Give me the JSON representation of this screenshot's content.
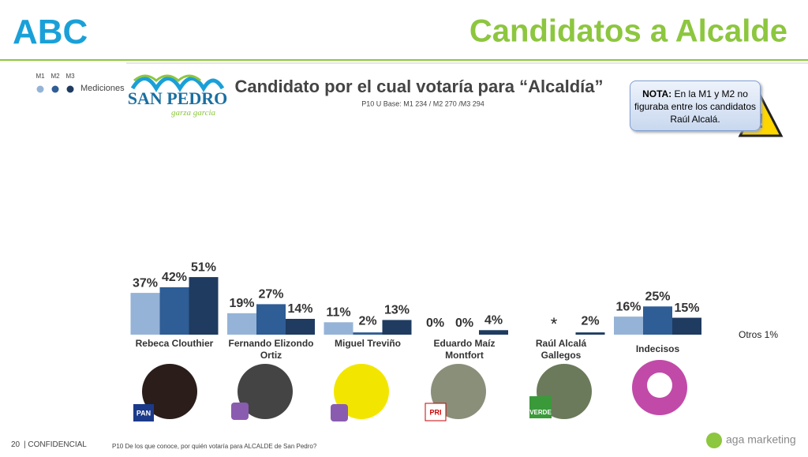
{
  "header": {
    "logo": "ABC",
    "title": "Candidatos a Alcalde",
    "brand": "SAN PEDRO",
    "brand_tagline": "garza garcia"
  },
  "note": {
    "label": "NOTA:",
    "text": "En la M1 y M2 no figuraba entre los candidatos Raúl Alcalá."
  },
  "legend_title": "Mediciones",
  "parties": [
    "PAN",
    "PRI",
    "VERDE"
  ],
  "footer": {
    "page": "20",
    "confidential": "| CONFIDENCIAL",
    "question": "P10 De los que conoce, por quién votaría para ALCALDE de San Pedro?",
    "company": "aga marketing"
  },
  "chart_data": {
    "type": "bar",
    "title": "Candidato por el cual votaría para “Alcaldía”",
    "subtitle": "P10 U Base: M1 234 / M2 270 /M3 294",
    "categories": [
      "Rebeca Clouthier",
      "Fernando Elizondo Ortiz",
      "Miguel Treviño",
      "Eduardo Maíz Montfort",
      "Raúl Alcalá Gallegos",
      "Indecisos"
    ],
    "series": [
      {
        "name": "M1",
        "color": "#95b3d7",
        "values": [
          37,
          19,
          11,
          0,
          null,
          16
        ],
        "value_labels": [
          "37%",
          "19%",
          "11%",
          "0%",
          null,
          "16%"
        ]
      },
      {
        "name": "M2",
        "color": "#2f5d95",
        "values": [
          42,
          27,
          2,
          0,
          null,
          25
        ],
        "value_labels": [
          "42%",
          "27%",
          "2%",
          "0%",
          null,
          "25%"
        ]
      },
      {
        "name": "M3",
        "color": "#1f3b60",
        "values": [
          51,
          14,
          13,
          4,
          2,
          15
        ],
        "value_labels": [
          "51%",
          "14%",
          "13%",
          "4%",
          "2%",
          "15%"
        ]
      }
    ],
    "annotations": [
      "*",
      "Otros 1%"
    ]
  }
}
